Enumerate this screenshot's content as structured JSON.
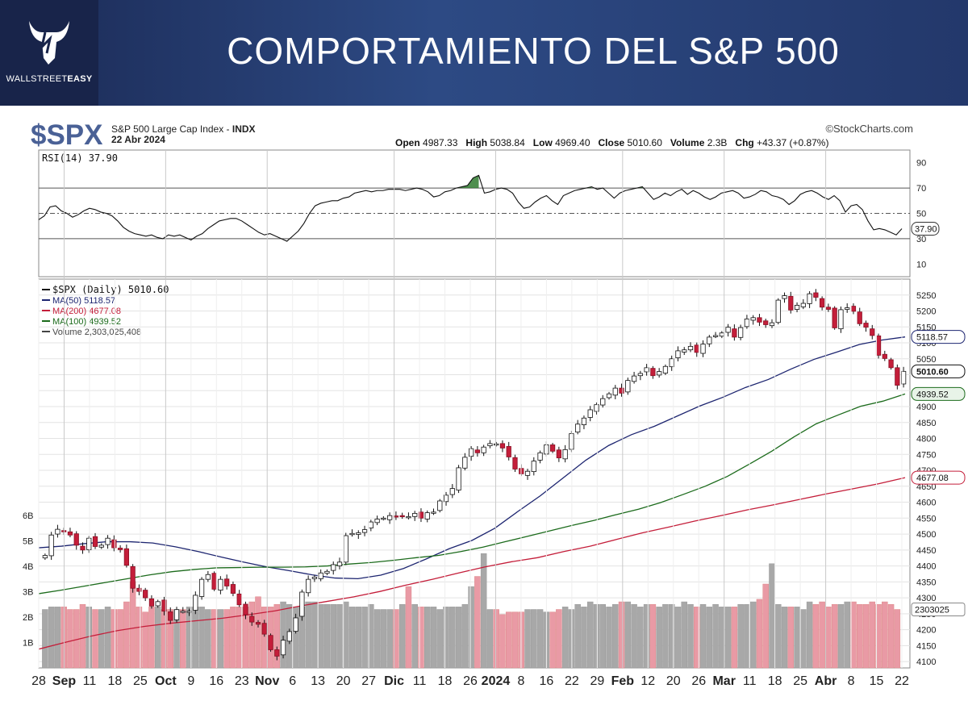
{
  "banner": {
    "title": "COMPORTAMIENTO DEL S&P 500",
    "logo_text_a": "WALLSTREET",
    "logo_text_b": "EASY",
    "logo_icon": "bull-head-icon"
  },
  "header": {
    "symbol": "$SPX",
    "name": "S&P 500 Large Cap Index - ",
    "exchange": "INDX",
    "date": "22 Abr 2024",
    "source": "©StockCharts.com",
    "ohlc": [
      {
        "label": "Open",
        "value": "4987.33"
      },
      {
        "label": "High",
        "value": "5038.84"
      },
      {
        "label": "Low",
        "value": "4969.40"
      },
      {
        "label": "Close",
        "value": "5010.60"
      },
      {
        "label": "Volume",
        "value": "2.3B"
      },
      {
        "label": "Chg",
        "value": "+43.37 (+0.87%)"
      }
    ]
  },
  "chart_data": {
    "type": "candlestick",
    "rsi": {
      "legend": "RSI(14) 37.90",
      "current_label": "37.90",
      "ticks": [
        90,
        70,
        50,
        30,
        10
      ],
      "ylim": [
        0,
        100
      ],
      "reference_lines": [
        70,
        50,
        30
      ],
      "values": [
        45,
        48,
        55,
        56,
        52,
        50,
        47,
        49,
        52,
        54,
        53,
        51,
        50,
        48,
        44,
        39,
        36,
        34,
        33,
        32,
        33,
        31,
        30,
        33,
        32,
        33,
        31,
        29,
        32,
        34,
        38,
        41,
        44,
        45,
        46,
        46,
        44,
        41,
        38,
        35,
        33,
        34,
        32,
        30,
        28,
        32,
        36,
        42,
        50,
        56,
        58,
        59,
        60,
        60,
        62,
        63,
        66,
        67,
        68,
        67,
        68,
        68,
        69,
        69,
        69,
        68,
        69,
        70,
        69,
        67,
        63,
        64,
        67,
        68,
        70,
        71,
        72,
        78,
        80,
        66,
        67,
        69,
        70,
        69,
        66,
        59,
        54,
        55,
        59,
        62,
        64,
        60,
        57,
        64,
        66,
        68,
        69,
        70,
        71,
        69,
        70,
        66,
        62,
        66,
        68,
        69,
        70,
        71,
        66,
        61,
        63,
        66,
        64,
        67,
        69,
        65,
        68,
        66,
        63,
        61,
        63,
        66,
        67,
        68,
        66,
        62,
        63,
        65,
        68,
        67,
        64,
        63,
        61,
        57,
        60,
        65,
        67,
        68,
        66,
        63,
        61,
        64,
        60,
        51,
        56,
        57,
        53,
        44,
        37,
        38,
        37,
        35,
        33,
        37.9
      ],
      "highlight_over": 70
    },
    "price": {
      "legend": "$SPX (Daily) 5010.60",
      "ylim": [
        4080,
        5300
      ],
      "ticks": [
        5250,
        5200,
        5150,
        5100,
        5050,
        5000,
        4950,
        4900,
        4850,
        4800,
        4750,
        4700,
        4650,
        4600,
        4550,
        4500,
        4450,
        4400,
        4350,
        4300,
        4250,
        4200,
        4150,
        4100
      ],
      "last": 5010.6,
      "closes": [
        4433,
        4497,
        4515,
        4507,
        4497,
        4465,
        4450,
        4487,
        4461,
        4465,
        4487,
        4457,
        4451,
        4402,
        4330,
        4320,
        4300,
        4274,
        4288,
        4258,
        4229,
        4263,
        4258,
        4258,
        4308,
        4358,
        4373,
        4327,
        4358,
        4337,
        4314,
        4278,
        4247,
        4224,
        4217,
        4186,
        4137,
        4117,
        4167,
        4194,
        4237,
        4318,
        4358,
        4365,
        4378,
        4383,
        4404,
        4412,
        4495,
        4502,
        4504,
        4514,
        4538,
        4547,
        4550,
        4558,
        4555,
        4557,
        4555,
        4565,
        4550,
        4567,
        4569,
        4604,
        4622,
        4643,
        4708,
        4741,
        4768,
        4755,
        4773,
        4784,
        4783,
        4770,
        4742,
        4704,
        4689,
        4697,
        4729,
        4755,
        4780,
        4760,
        4739,
        4765,
        4815,
        4845,
        4864,
        4890,
        4906,
        4925,
        4940,
        4958,
        4942,
        4982,
        4996,
        5004,
        5022,
        4997,
        5010,
        5026,
        5050,
        5075,
        5078,
        5089,
        5070,
        5096,
        5118,
        5123,
        5131,
        5149,
        5118,
        5148,
        5175,
        5179,
        5165,
        5157,
        5163,
        5234,
        5248,
        5203,
        5218,
        5224,
        5254,
        5243,
        5212,
        5205,
        5147,
        5204,
        5210,
        5199,
        5160,
        5149,
        5123,
        5061,
        5051,
        5022,
        4967,
        5010.6
      ],
      "series": [
        {
          "name": "MA(50)",
          "legend": "MA(50) 5118.57",
          "color": "#1d2570",
          "current": 5118.57,
          "current_label": "5118.57",
          "values": [
            4457,
            4462,
            4470,
            4476,
            4476,
            4472,
            4460,
            4445,
            4428,
            4412,
            4397,
            4385,
            4372,
            4362,
            4360,
            4371,
            4392,
            4422,
            4454,
            4480,
            4518,
            4570,
            4620,
            4676,
            4732,
            4778,
            4812,
            4838,
            4870,
            4902,
            4929,
            4960,
            4985,
            5018,
            5048,
            5071,
            5095,
            5109,
            5118.57
          ]
        },
        {
          "name": "MA(100)",
          "legend": "MA(100) 4939.52",
          "color": "#1c6b1c",
          "current": 4939.52,
          "current_label": "4939.52",
          "values": [
            4313,
            4324,
            4336,
            4348,
            4360,
            4372,
            4382,
            4389,
            4394,
            4395,
            4396,
            4396,
            4397,
            4400,
            4406,
            4411,
            4418,
            4426,
            4433,
            4445,
            4459,
            4476,
            4493,
            4510,
            4527,
            4543,
            4561,
            4578,
            4599,
            4624,
            4650,
            4681,
            4720,
            4760,
            4805,
            4846,
            4874,
            4901,
            4917,
            4939.52
          ]
        },
        {
          "name": "MA(200)",
          "legend": "MA(200) 4677.08",
          "color": "#c41e3a",
          "current": 4677.08,
          "current_label": "4677.08",
          "values": [
            4139,
            4160,
            4180,
            4197,
            4210,
            4220,
            4228,
            4236,
            4247,
            4259,
            4275,
            4289,
            4303,
            4320,
            4340,
            4358,
            4378,
            4397,
            4413,
            4426,
            4445,
            4462,
            4483,
            4504,
            4522,
            4541,
            4558,
            4576,
            4592,
            4609,
            4626,
            4642,
            4658,
            4677.08
          ]
        }
      ]
    },
    "volume": {
      "legend": "Volume 2,303,025,408",
      "current_label": "2303025",
      "ylim_billions": [
        0,
        6.5
      ],
      "ticks": [
        "6B",
        "5B",
        "4B",
        "3B",
        "2B",
        "1B"
      ],
      "values_billions": [
        2.3,
        2.4,
        2.4,
        2.4,
        2.3,
        2.3,
        2.5,
        2.4,
        2.3,
        2.3,
        2.4,
        2.3,
        2.3,
        2.6,
        3.4,
        2.4,
        2.2,
        2.4,
        2.4,
        2.3,
        2.3,
        2.3,
        2.3,
        2.4,
        2.4,
        2.4,
        2.3,
        2.3,
        2.3,
        2.3,
        2.4,
        2.4,
        2.4,
        2.6,
        2.8,
        2.4,
        2.4,
        2.5,
        2.6,
        2.5,
        2.4,
        2.4,
        2.6,
        2.6,
        2.5,
        2.5,
        2.5,
        2.5,
        2.6,
        2.4,
        2.4,
        2.4,
        2.5,
        2.3,
        2.3,
        2.3,
        2.3,
        2.5,
        3.2,
        2.5,
        2.4,
        2.4,
        2.4,
        2.3,
        2.4,
        2.4,
        2.4,
        2.5,
        3.2,
        3.6,
        4.5,
        2.3,
        2.3,
        2.1,
        2.2,
        2.2,
        2.2,
        2.3,
        2.3,
        2.3,
        2.2,
        2.2,
        2.3,
        2.4,
        2.3,
        2.5,
        2.4,
        2.6,
        2.5,
        2.5,
        2.4,
        2.5,
        2.6,
        2.6,
        2.5,
        2.4,
        2.5,
        2.5,
        2.4,
        2.5,
        2.5,
        2.4,
        2.6,
        2.5,
        2.4,
        2.5,
        2.4,
        2.5,
        2.4,
        2.4,
        2.4,
        2.5,
        2.5,
        2.6,
        2.7,
        3.3,
        4.1,
        2.5,
        2.4,
        2.4,
        2.4,
        2.3,
        2.6,
        2.5,
        2.6,
        2.4,
        2.5,
        2.5,
        2.6,
        2.6,
        2.5,
        2.5,
        2.6,
        2.5,
        2.6,
        2.5,
        2.3
      ]
    },
    "x_ticks": [
      "28",
      "Sep",
      "11",
      "18",
      "25",
      "Oct",
      "9",
      "16",
      "23",
      "Nov",
      "6",
      "13",
      "20",
      "27",
      "Dic",
      "11",
      "18",
      "26",
      "2024",
      "8",
      "16",
      "22",
      "29",
      "Feb",
      "12",
      "20",
      "26",
      "Mar",
      "11",
      "18",
      "25",
      "Abr",
      "8",
      "15",
      "22"
    ],
    "x_ticks_bold": [
      "Sep",
      "Oct",
      "Nov",
      "Dic",
      "2024",
      "Feb",
      "Mar",
      "Abr"
    ],
    "colors": {
      "up": "#ffffff",
      "down": "#c41e3a",
      "vol_up": "#a8a8a8",
      "vol_down": "#e99aa5",
      "rsi_fill": "#2f7a2f"
    }
  }
}
